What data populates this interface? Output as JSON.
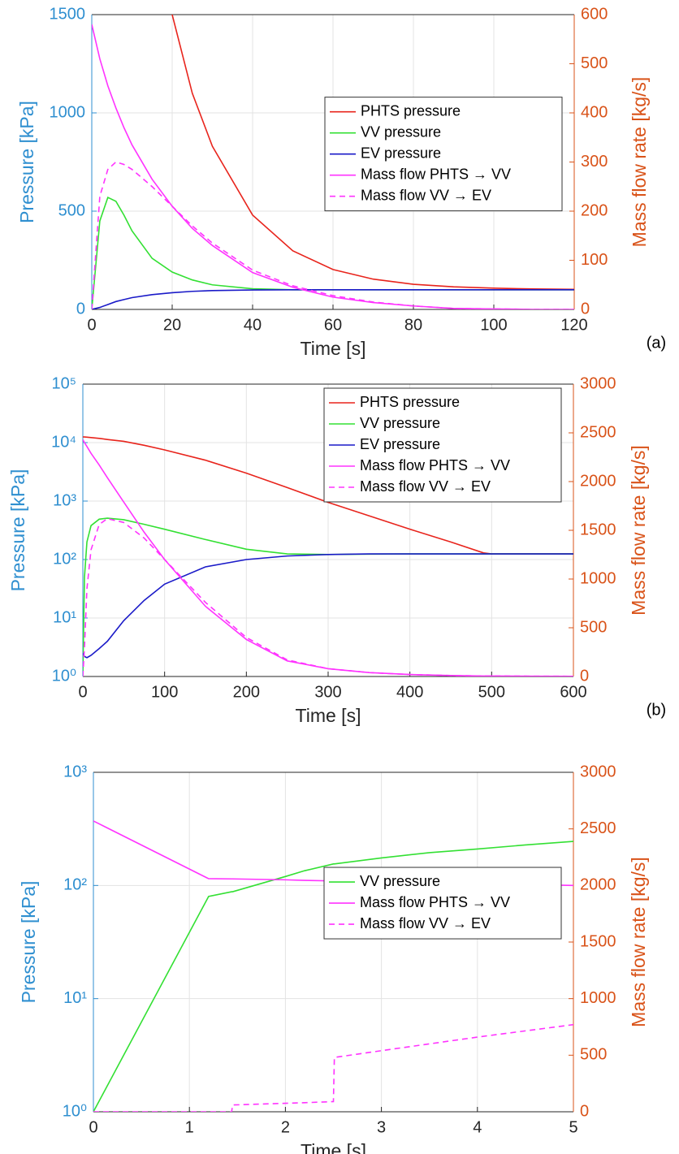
{
  "chart_data": [
    {
      "type": "line",
      "panel_label": "(a)",
      "xlabel": "Time [s]",
      "ylabel": "Pressure [kPa]",
      "y2label": "Mass flow rate [kg/s]",
      "x": [
        0,
        2,
        4,
        6,
        8,
        10,
        15,
        20,
        25,
        30,
        40,
        50,
        60,
        70,
        80,
        90,
        100,
        110,
        120
      ],
      "xlim": [
        0,
        120
      ],
      "xticks": [
        0,
        20,
        40,
        60,
        80,
        100,
        120
      ],
      "ylim": [
        0,
        1500
      ],
      "yticks": [
        0,
        500,
        1000,
        1500
      ],
      "log_y": false,
      "y2lim": [
        0,
        600
      ],
      "y2ticks": [
        0,
        100,
        200,
        300,
        400,
        500,
        600
      ],
      "grid": true,
      "legend": "right",
      "series": [
        {
          "name": "PHTS pressure",
          "color": "#e8241c",
          "style": "solid",
          "values": [
            null,
            null,
            null,
            null,
            null,
            null,
            null,
            1500,
            1100,
            830,
            480,
            298,
            203,
            154,
            128,
            115,
            108,
            104,
            102
          ]
        },
        {
          "name": "VV pressure",
          "color": "#33e033",
          "style": "solid",
          "values": [
            0,
            450,
            570,
            550,
            480,
            400,
            260,
            190,
            150,
            125,
            105,
            100,
            100,
            100,
            100,
            100,
            100,
            100,
            100
          ]
        },
        {
          "name": "EV pressure",
          "color": "#1a1ac8",
          "style": "solid",
          "values": [
            0,
            10,
            25,
            40,
            50,
            60,
            75,
            85,
            92,
            96,
            99,
            100,
            100,
            100,
            100,
            100,
            100,
            100,
            100
          ]
        },
        {
          "name": "Mass flow PHTS → VV",
          "color": "#ff33ff",
          "style": "solid",
          "axis": "y2",
          "values": [
            580,
            510,
            455,
            410,
            370,
            335,
            265,
            210,
            165,
            130,
            75,
            45,
            25,
            14,
            7,
            2,
            1,
            0,
            0
          ]
        },
        {
          "name": "Mass flow VV → EV",
          "color": "#ff33ff",
          "style": "dashed",
          "axis": "y2",
          "values": [
            0,
            230,
            285,
            300,
            295,
            285,
            250,
            210,
            170,
            135,
            80,
            48,
            28,
            15,
            7,
            2,
            1,
            0,
            0
          ]
        }
      ]
    },
    {
      "type": "line",
      "panel_label": "(b)",
      "xlabel": "Time [s]",
      "ylabel": "Pressure [kPa]",
      "y2label": "Mass flow rate [kg/s]",
      "x": [
        0,
        2,
        5,
        10,
        20,
        30,
        50,
        75,
        100,
        150,
        200,
        250,
        300,
        350,
        400,
        450,
        490,
        500,
        550,
        600
      ],
      "xlim": [
        0,
        600
      ],
      "xticks": [
        0,
        100,
        200,
        300,
        400,
        500,
        600
      ],
      "ylim": [
        1,
        100000
      ],
      "log_y": true,
      "yticks": [
        {
          "value": 1,
          "label": "10⁰"
        },
        {
          "value": 10,
          "label": "10¹"
        },
        {
          "value": 100,
          "label": "10²"
        },
        {
          "value": 1000,
          "label": "10³"
        },
        {
          "value": 10000,
          "label": "10⁴"
        },
        {
          "value": 100000,
          "label": "10⁵"
        }
      ],
      "y2lim": [
        0,
        3000
      ],
      "y2ticks": [
        0,
        500,
        1000,
        1500,
        2000,
        2500,
        3000
      ],
      "grid": true,
      "legend": "upper right",
      "series": [
        {
          "name": "PHTS pressure",
          "color": "#e8241c",
          "style": "solid",
          "values": [
            12500,
            12500,
            12400,
            12200,
            11800,
            11300,
            10500,
            9000,
            7500,
            5000,
            3000,
            1700,
            950,
            560,
            330,
            200,
            130,
            125,
            125,
            125
          ]
        },
        {
          "name": "VV pressure",
          "color": "#33e033",
          "style": "solid",
          "values": [
            1,
            50,
            200,
            380,
            490,
            510,
            480,
            400,
            330,
            220,
            150,
            125,
            122,
            124,
            125,
            125,
            125,
            125,
            125,
            125
          ]
        },
        {
          "name": "EV pressure",
          "color": "#1a1ac8",
          "style": "solid",
          "values": [
            2.5,
            2.2,
            2.1,
            2.3,
            3,
            4,
            9,
            20,
            38,
            75,
            100,
            115,
            122,
            125,
            125,
            125,
            125,
            125,
            125,
            125
          ]
        },
        {
          "name": "Mass flow PHTS → VV",
          "color": "#ff33ff",
          "style": "solid",
          "axis": "y2",
          "values": [
            2430,
            2400,
            2360,
            2290,
            2170,
            2040,
            1790,
            1480,
            1200,
            720,
            380,
            160,
            80,
            40,
            20,
            10,
            5,
            5,
            3,
            2
          ]
        },
        {
          "name": "Mass flow VV → EV",
          "color": "#ff33ff",
          "style": "dashed",
          "axis": "y2",
          "values": [
            0,
            300,
            900,
            1300,
            1560,
            1620,
            1580,
            1420,
            1200,
            760,
            400,
            170,
            80,
            40,
            20,
            10,
            5,
            5,
            3,
            2
          ]
        }
      ]
    },
    {
      "type": "line",
      "xlabel": "Time [s]",
      "ylabel": "Pressure [kPa]",
      "y2label": "Mass flow rate [kg/s]",
      "x": [
        0,
        1.2,
        1.44,
        1.45,
        2,
        2.2,
        2.5,
        2.51,
        3,
        3.5,
        4,
        4.5,
        5
      ],
      "xlim": [
        0,
        5
      ],
      "xticks": [
        0,
        1,
        2,
        3,
        4,
        5
      ],
      "ylim": [
        1,
        1000
      ],
      "log_y": true,
      "yticks": [
        {
          "value": 1,
          "label": "10⁰"
        },
        {
          "value": 10,
          "label": "10¹"
        },
        {
          "value": 100,
          "label": "10²"
        },
        {
          "value": 1000,
          "label": "10³"
        }
      ],
      "y2lim": [
        0,
        3000
      ],
      "y2ticks": [
        0,
        500,
        1000,
        1500,
        2000,
        2500,
        3000
      ],
      "grid": true,
      "legend": "right",
      "series": [
        {
          "name": "VV pressure",
          "color": "#33e033",
          "style": "solid",
          "values": [
            1,
            80,
            88,
            88,
            120,
            135,
            155,
            155,
            175,
            195,
            210,
            228,
            245
          ]
        },
        {
          "name": "Mass flow PHTS → VV",
          "color": "#ff33ff",
          "style": "solid",
          "axis": "y2",
          "values": [
            2570,
            2060,
            2058,
            2058,
            2050,
            2045,
            2040,
            2040,
            2032,
            2024,
            2016,
            2008,
            2000
          ]
        },
        {
          "name": "Mass flow VV → EV",
          "color": "#ff33ff",
          "style": "dashed",
          "axis": "y2",
          "values": [
            0,
            0,
            0,
            60,
            75,
            80,
            90,
            480,
            540,
            600,
            660,
            715,
            770
          ]
        }
      ]
    }
  ]
}
